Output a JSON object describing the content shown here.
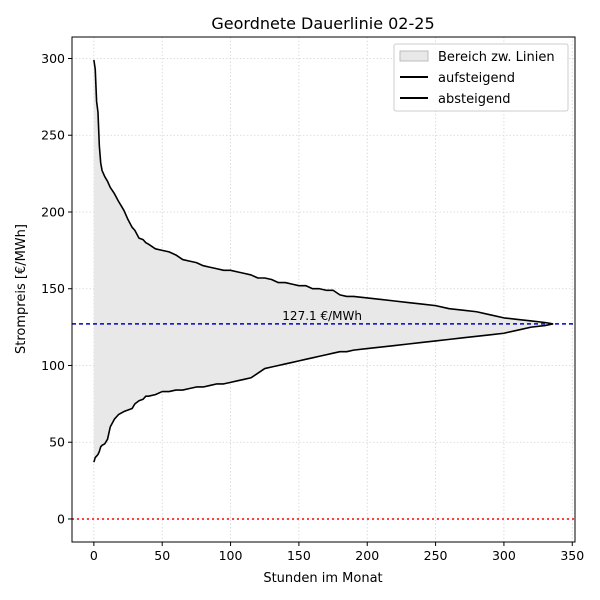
{
  "chart_data": {
    "type": "line",
    "title": "Geordnete Dauerlinie 02-25",
    "xlabel": "Stunden im Monat",
    "ylabel": "Strompreis [€/MWh]",
    "xlim": [
      -16,
      352
    ],
    "ylim": [
      -15,
      314
    ],
    "xticks": [
      0,
      50,
      100,
      150,
      200,
      250,
      300,
      350
    ],
    "yticks": [
      0,
      50,
      100,
      150,
      200,
      250,
      300
    ],
    "grid": true,
    "legend_position": "top-right",
    "legend": [
      {
        "label": "Bereich zw. Linien",
        "kind": "fill",
        "color": "#e8e8e8"
      },
      {
        "label": "aufsteigend",
        "kind": "line",
        "color": "#000000"
      },
      {
        "label": "absteigend",
        "kind": "line",
        "color": "#000000"
      }
    ],
    "reference_lines": [
      {
        "value": 127.1,
        "label": "127.1 €/MWh",
        "color": "#0000cc",
        "style": "dashed",
        "label_x": 167
      },
      {
        "value": 0,
        "label": "",
        "color": "#ff0000",
        "style": "dotted"
      }
    ],
    "series": [
      {
        "name": "absteigend",
        "color": "#000000",
        "x": [
          0,
          1,
          2,
          3,
          4,
          5,
          6,
          8,
          10,
          12,
          15,
          18,
          20,
          22,
          25,
          28,
          30,
          33,
          36,
          38,
          40,
          45,
          50,
          55,
          60,
          65,
          70,
          75,
          80,
          85,
          90,
          95,
          100,
          105,
          110,
          115,
          120,
          125,
          130,
          135,
          140,
          145,
          150,
          155,
          160,
          165,
          170,
          175,
          180,
          185,
          190,
          200,
          210,
          220,
          230,
          240,
          250,
          260,
          270,
          280,
          290,
          300,
          310,
          320,
          330,
          336
        ],
        "y": [
          299,
          293,
          272,
          265,
          243,
          232,
          227,
          223,
          220,
          216,
          212,
          207,
          204,
          201,
          195,
          190,
          188,
          183,
          182,
          180,
          179,
          176,
          175,
          174,
          172,
          169,
          168,
          167,
          165,
          164,
          163,
          162,
          162,
          161,
          160,
          159,
          157,
          157,
          156,
          154,
          154,
          153,
          152,
          152,
          150,
          150,
          149,
          149,
          146,
          145,
          145,
          144,
          143,
          142,
          141,
          140,
          139,
          137,
          136,
          135,
          133,
          131,
          130,
          129,
          128,
          127.1
        ]
      },
      {
        "name": "aufsteigend",
        "color": "#000000",
        "x": [
          0,
          1,
          2,
          3,
          4,
          5,
          6,
          8,
          10,
          12,
          15,
          18,
          20,
          22,
          25,
          28,
          30,
          33,
          36,
          38,
          40,
          45,
          50,
          55,
          60,
          65,
          70,
          75,
          80,
          85,
          90,
          95,
          100,
          105,
          110,
          115,
          120,
          125,
          130,
          135,
          140,
          145,
          150,
          155,
          160,
          165,
          170,
          175,
          180,
          185,
          190,
          200,
          210,
          220,
          230,
          240,
          250,
          260,
          270,
          280,
          290,
          300,
          310,
          320,
          330,
          336
        ],
        "y": [
          37,
          40,
          41,
          42,
          44,
          47,
          48,
          49,
          52,
          60,
          65,
          68,
          69,
          70,
          71,
          72,
          75,
          77,
          78,
          80,
          80,
          81,
          83,
          83,
          84,
          84,
          85,
          86,
          86,
          87,
          88,
          88,
          89,
          90,
          91,
          92,
          95,
          98,
          99,
          100,
          101,
          102,
          103,
          104,
          105,
          106,
          107,
          108,
          109,
          109,
          110,
          111,
          112,
          113,
          114,
          115,
          116,
          117,
          118,
          119,
          120,
          121,
          123,
          125,
          126,
          127.1
        ]
      }
    ]
  }
}
